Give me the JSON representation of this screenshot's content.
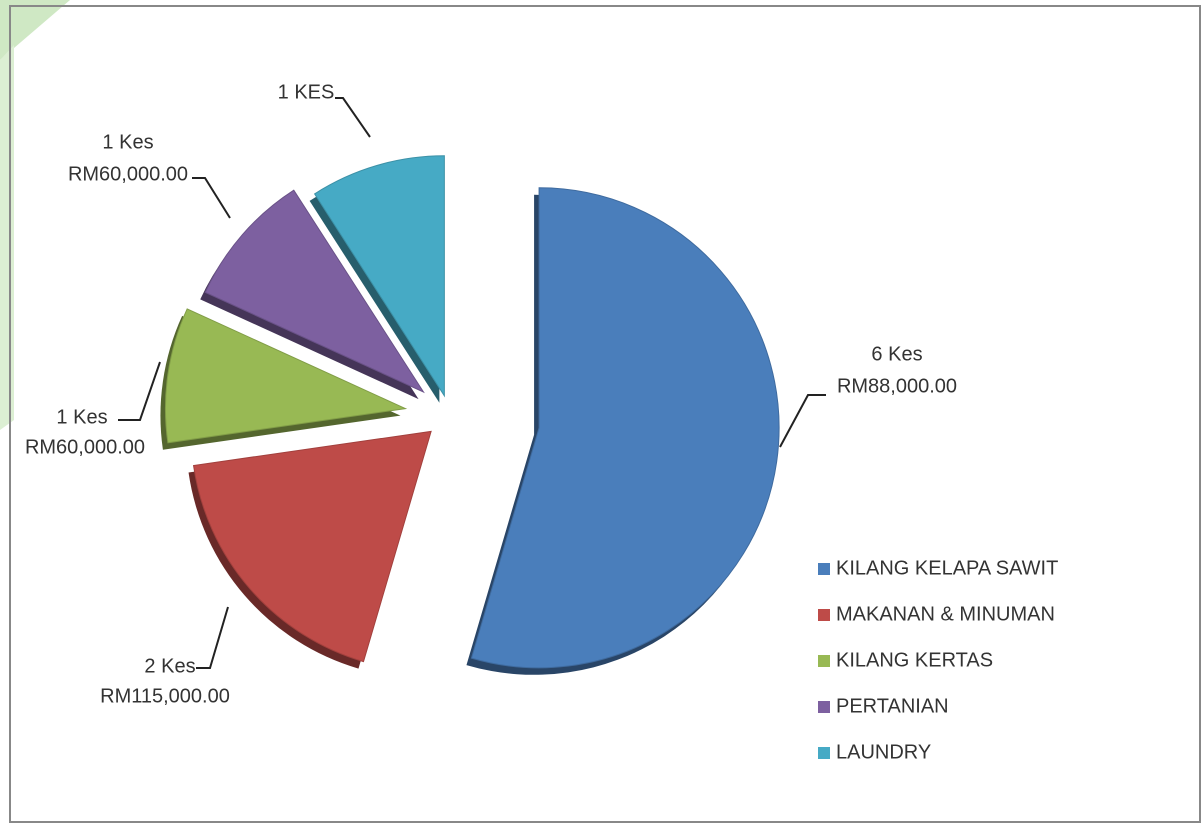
{
  "chart_data": {
    "type": "pie",
    "categories": [
      "KILANG KELAPA SAWIT",
      "MAKANAN & MINUMAN",
      "KILANG KERTAS",
      "PERTANIAN",
      "LAUNDRY"
    ],
    "values": [
      6,
      2,
      1,
      1,
      1
    ],
    "value_labels": [
      "6 Kes",
      "2 Kes",
      "1 Kes",
      "1 Kes",
      "1 KES"
    ],
    "amount_labels": [
      "RM88,000.00",
      "RM115,000.00",
      "RM60,000.00",
      "RM60,000.00",
      null
    ],
    "colors": [
      "#4a7ebb",
      "#be4b48",
      "#98b954",
      "#7d60a0",
      "#46aac5"
    ],
    "legend": "right"
  }
}
